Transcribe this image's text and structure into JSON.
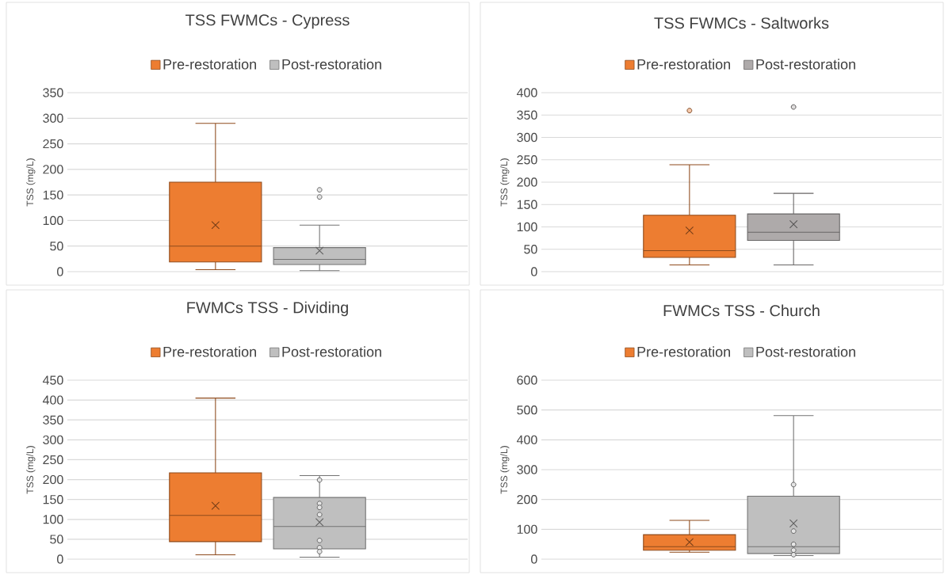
{
  "chart_data": [
    {
      "type": "box",
      "title": "TSS FWMCs - Cypress",
      "ylabel": "TSS (mg/L)",
      "categories": [
        null
      ],
      "ylim": [
        0,
        350
      ],
      "yticks": [
        0,
        50,
        100,
        150,
        200,
        250,
        300,
        350
      ],
      "grid": "y",
      "legend": "top",
      "tick_labels": "y",
      "marker": "circle",
      "series": [
        {
          "name": "Pre-restoration",
          "color": "#ed7d31",
          "boxes": [
            {
              "low": 4,
              "q1": 19,
              "median": 50,
              "q3": 175,
              "high": 290,
              "mean": 91
            }
          ]
        },
        {
          "name": "Post-restoration",
          "color": "#bfbfbf",
          "boxes": [
            {
              "low": 2,
              "q1": 14,
              "median": 24,
              "q3": 47,
              "high": 91,
              "mean": 41,
              "outliers": [
                160,
                146
              ]
            }
          ]
        }
      ]
    },
    {
      "type": "box",
      "title": "TSS FWMCs - Saltworks",
      "ylabel": "TSS (mg/L)",
      "categories": [
        null
      ],
      "ylim": [
        0,
        400
      ],
      "yticks": [
        0,
        50,
        100,
        150,
        200,
        250,
        300,
        350,
        400
      ],
      "grid": "y",
      "legend": "top",
      "tick_labels": "y",
      "marker": "circle",
      "series": [
        {
          "name": "Pre-restoration",
          "color": "#ed7d31",
          "boxes": [
            {
              "low": 15,
              "q1": 32,
              "median": 47,
              "q3": 126,
              "high": 239,
              "mean": 92,
              "outliers": [
                360
              ]
            }
          ]
        },
        {
          "name": "Post-restoration",
          "color": "#aeaaaa",
          "boxes": [
            {
              "low": 15,
              "q1": 70,
              "median": 88,
              "q3": 129,
              "high": 175,
              "mean": 106,
              "outliers": [
                368
              ]
            }
          ]
        }
      ]
    },
    {
      "type": "box",
      "title": "FWMCs TSS - Dividing",
      "ylabel": "TSS (mg/L)",
      "categories": [
        null
      ],
      "ylim": [
        0,
        450
      ],
      "yticks": [
        0,
        50,
        100,
        150,
        200,
        250,
        300,
        350,
        400,
        450
      ],
      "grid": "y",
      "legend": "top",
      "tick_labels": "y",
      "marker": "circle",
      "series": [
        {
          "name": "Pre-restoration",
          "color": "#ed7d31",
          "boxes": [
            {
              "low": 11,
              "q1": 44,
              "median": 110,
              "q3": 217,
              "high": 405,
              "mean": 134
            }
          ]
        },
        {
          "name": "Post-restoration",
          "color": "#bfbfbf",
          "boxes": [
            {
              "low": 5,
              "q1": 26,
              "median": 82,
              "q3": 155,
              "high": 210,
              "mean": 93,
              "outliers": [
                199,
                140,
                130,
                112,
                47,
                29,
                19
              ]
            }
          ]
        }
      ]
    },
    {
      "type": "box",
      "title": "FWMCs TSS - Church",
      "ylabel": "TSS (mg/L)",
      "categories": [
        null
      ],
      "ylim": [
        0,
        600
      ],
      "yticks": [
        0,
        100,
        200,
        300,
        400,
        500,
        600
      ],
      "grid": "y",
      "legend": "top",
      "tick_labels": "y",
      "marker": "circle",
      "series": [
        {
          "name": "Pre-restoration",
          "color": "#ed7d31",
          "boxes": [
            {
              "low": 23,
              "q1": 30,
              "median": 42,
              "q3": 82,
              "high": 130,
              "mean": 57
            }
          ]
        },
        {
          "name": "Post-restoration",
          "color": "#bfbfbf",
          "boxes": [
            {
              "low": 12,
              "q1": 19,
              "median": 42,
              "q3": 211,
              "high": 481,
              "mean": 120,
              "outliers": [
                250,
                94,
                50,
                30,
                15
              ]
            }
          ]
        }
      ]
    }
  ]
}
